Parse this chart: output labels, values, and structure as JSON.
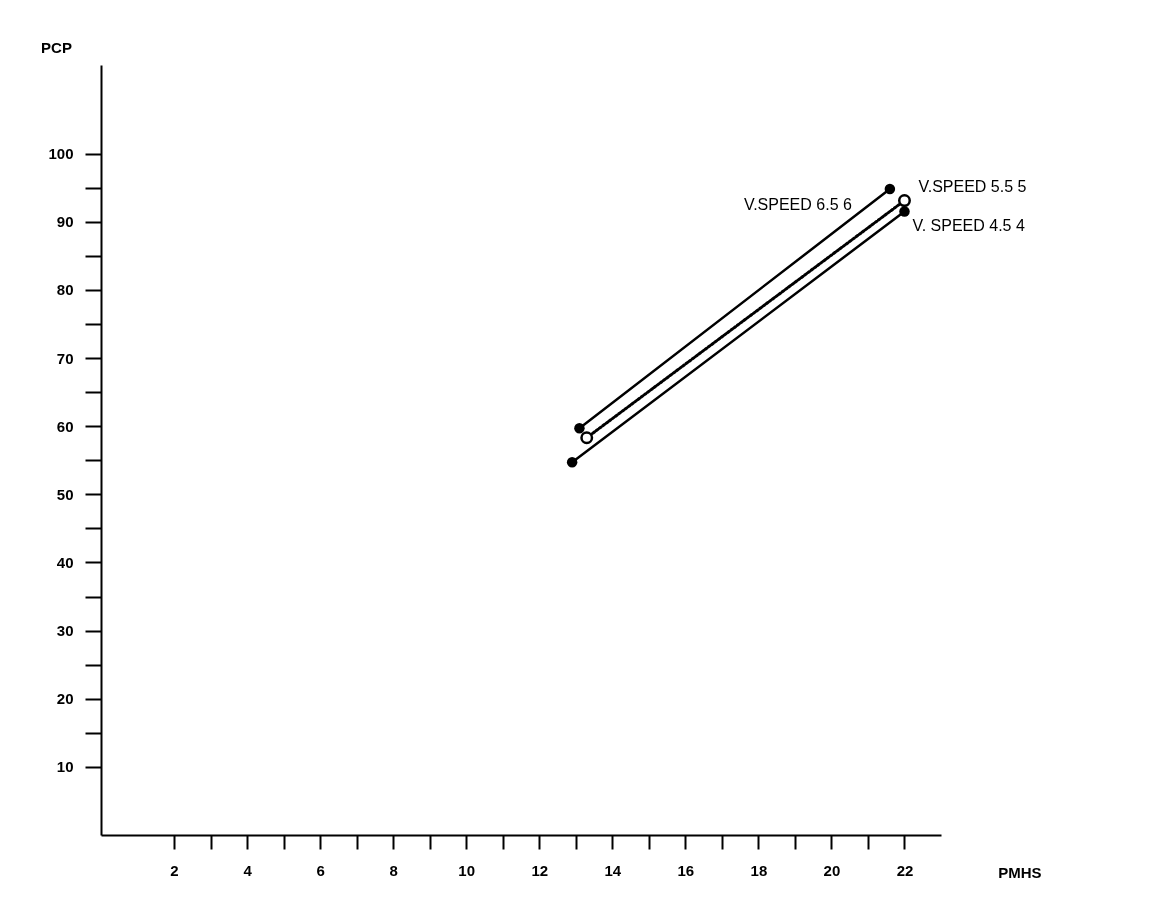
{
  "chart_data": {
    "type": "line",
    "xlabel": "PMHS",
    "ylabel": "PCP",
    "xlim": [
      0,
      23
    ],
    "ylim": [
      0,
      113
    ],
    "xticks": [
      2,
      {
        "value": 3,
        "label": null
      },
      4,
      {
        "value": 5,
        "label": null
      },
      6,
      {
        "value": 7,
        "label": null
      },
      8,
      {
        "value": 9,
        "label": null
      },
      10,
      {
        "value": 11,
        "label": null
      },
      12,
      {
        "value": 13,
        "label": null
      },
      14,
      {
        "value": 15,
        "label": null
      },
      16,
      {
        "value": 17,
        "label": null
      },
      18,
      {
        "value": 19,
        "label": null
      },
      20,
      {
        "value": 21,
        "label": null
      },
      22
    ],
    "yticks": [
      10,
      {
        "value": 15,
        "label": null
      },
      20,
      {
        "value": 25,
        "label": null
      },
      30,
      {
        "value": 35,
        "label": null
      },
      40,
      {
        "value": 45,
        "label": null
      },
      50,
      {
        "value": 55,
        "label": null
      },
      60,
      {
        "value": 65,
        "label": null
      },
      70,
      {
        "value": 75,
        "label": null
      },
      80,
      {
        "value": 85,
        "label": null
      },
      90,
      {
        "value": 95,
        "label": null
      },
      100
    ],
    "grid": false,
    "marker": "circle",
    "series": [
      {
        "name": "V.SPEED 6.5  6",
        "color": "#000000",
        "line_style": "solid",
        "x": [
          13.1,
          21.6
        ],
        "values": [
          59.7,
          94.8
        ]
      },
      {
        "name": "V.SPEED 5.5  5",
        "color": "#000000",
        "line_style": "dotted",
        "x": [
          13.3,
          22.0
        ],
        "values": [
          58.3,
          93.1
        ]
      },
      {
        "name": "V. SPEED 4.5  4",
        "color": "#000000",
        "line_style": "solid",
        "x": [
          12.9,
          22.0
        ],
        "values": [
          54.7,
          91.5
        ]
      }
    ]
  }
}
